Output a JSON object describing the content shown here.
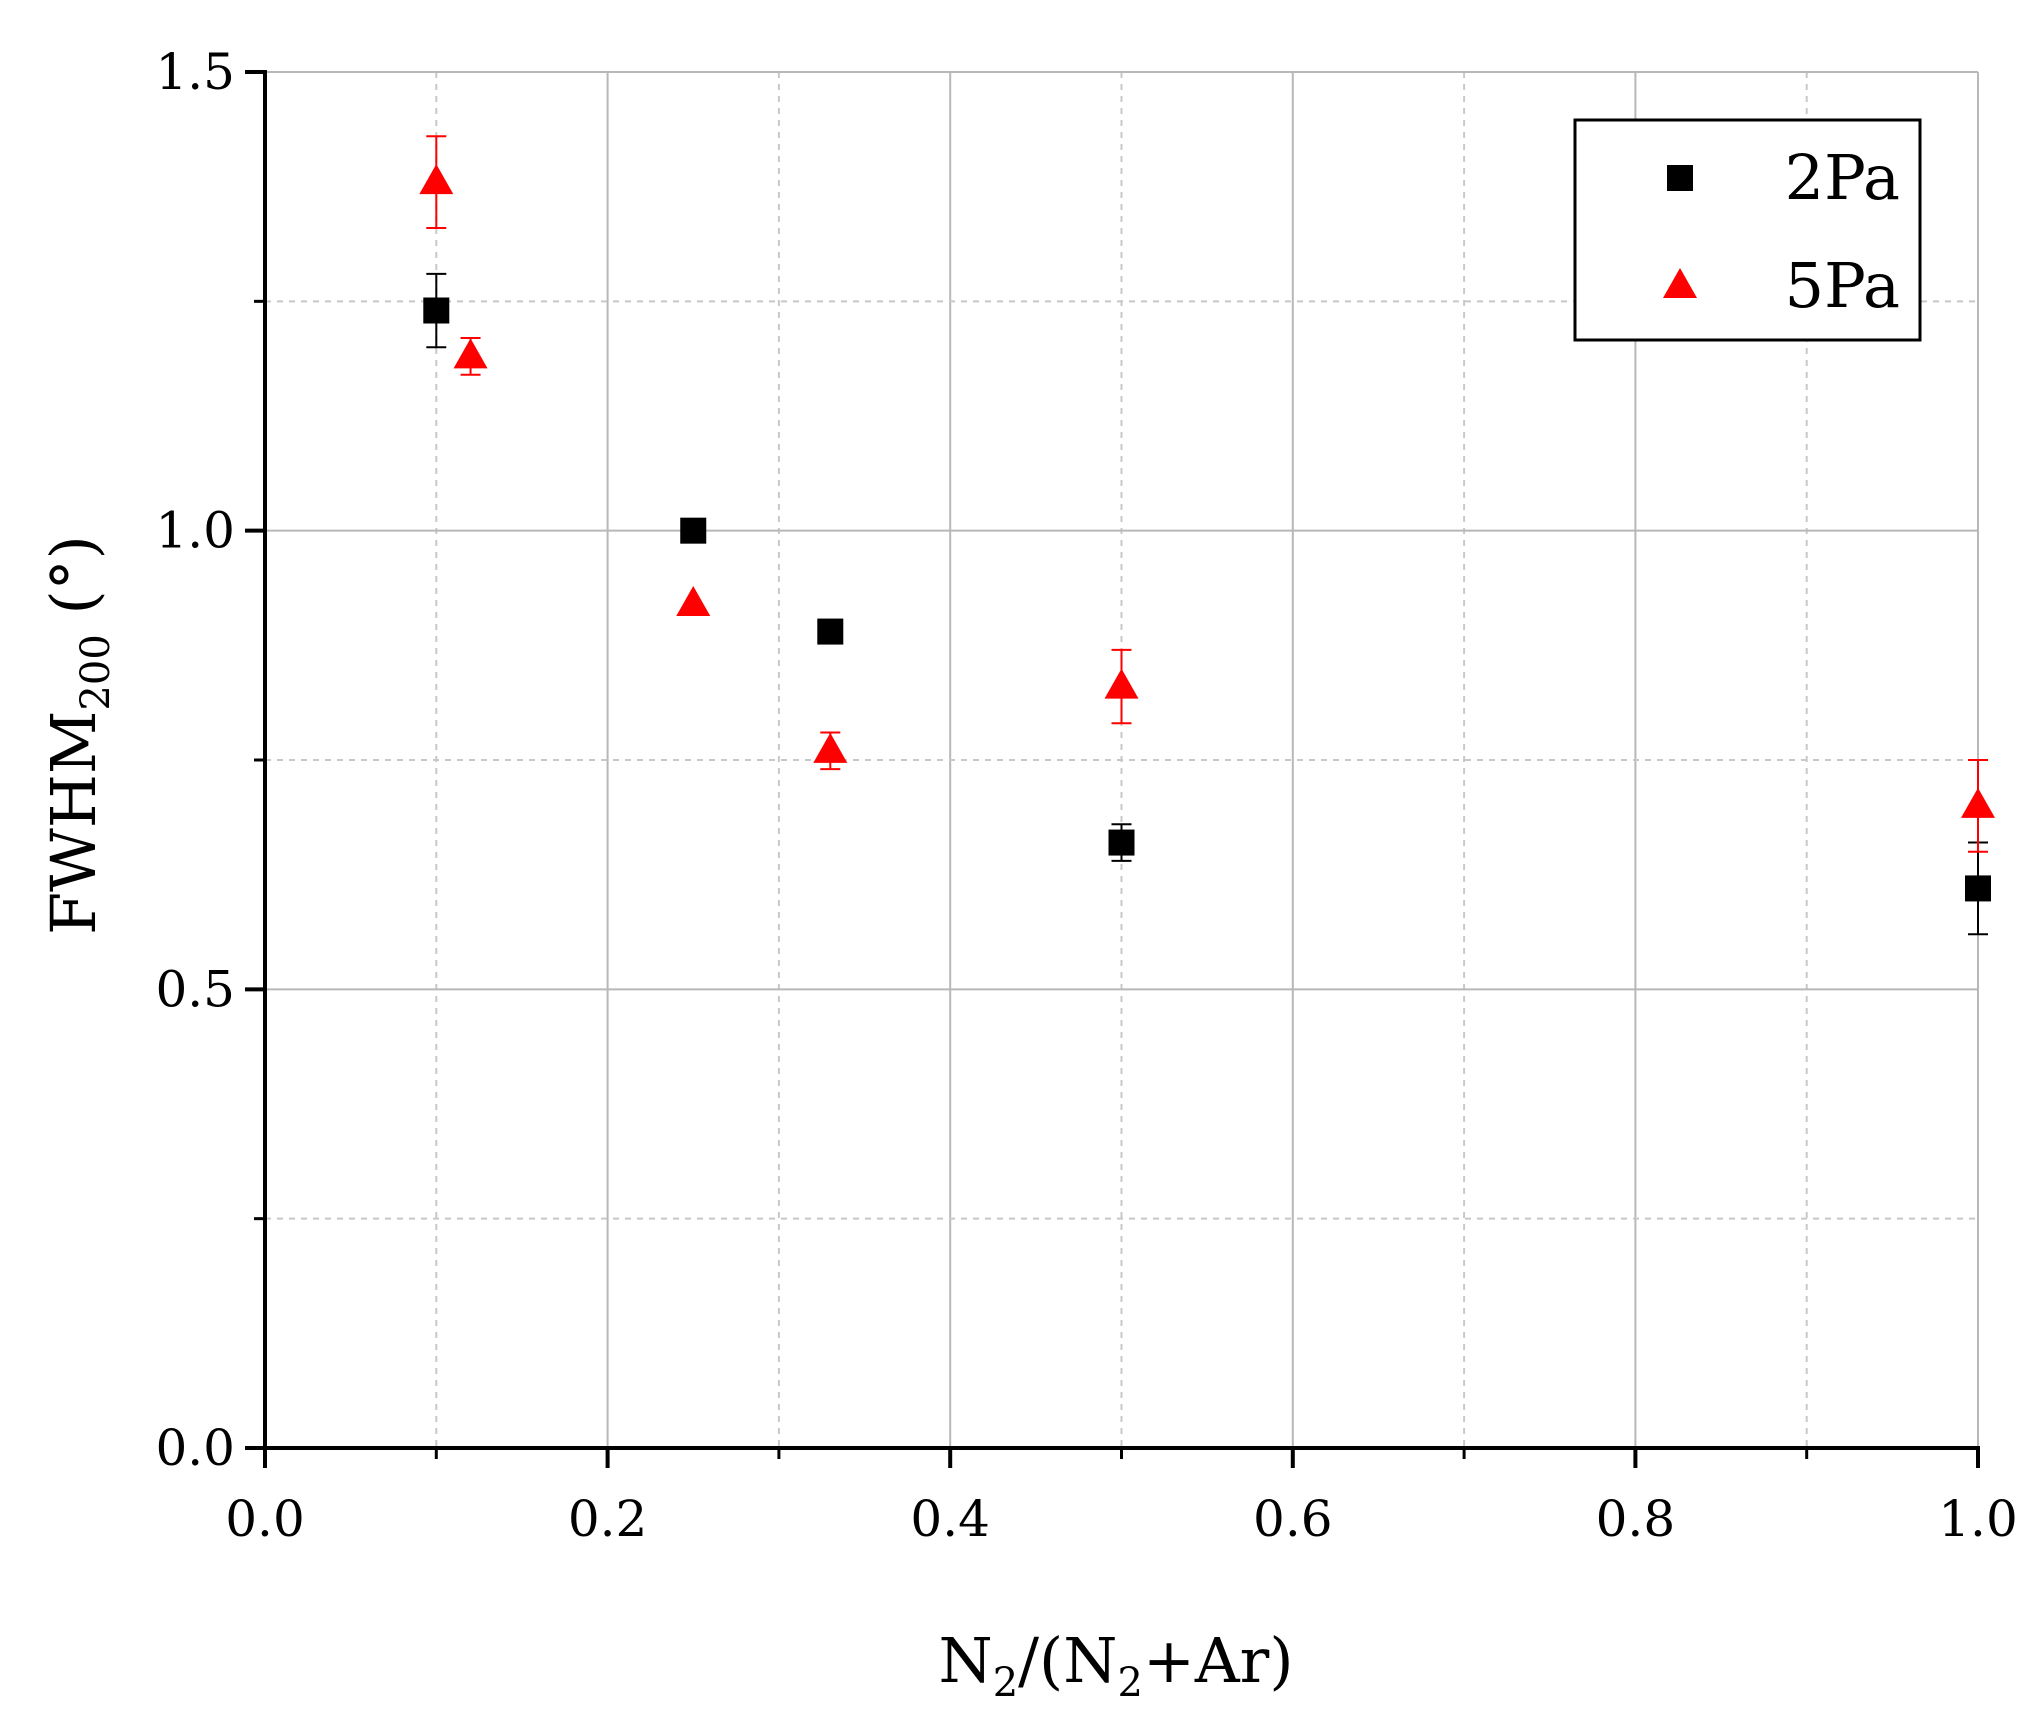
{
  "chart_data": {
    "type": "scatter",
    "xlabel": {
      "base": "N",
      "sub1": "2",
      "mid": "/(N",
      "sub2": "2",
      "tail": "+Ar)"
    },
    "ylabel": {
      "base": "FWHM",
      "sub": "200",
      "tail": " (°)"
    },
    "xlim": [
      0,
      1
    ],
    "ylim": [
      0,
      1.5
    ],
    "x_ticks": [
      0,
      0.2,
      0.4,
      0.6,
      0.8,
      1.0
    ],
    "x_tick_labels": [
      "0.0",
      "0.2",
      "0.4",
      "0.6",
      "0.8",
      "1.0"
    ],
    "x_minor_ticks": [
      0.1,
      0.3,
      0.5,
      0.7,
      0.9
    ],
    "y_ticks": [
      0,
      0.5,
      1.0,
      1.5
    ],
    "y_tick_labels": [
      "0.0",
      "0.5",
      "1.0",
      "1.5"
    ],
    "y_minor_ticks": [
      0.25,
      0.75,
      1.25
    ],
    "grid": true,
    "legend_position": "top-right",
    "series": [
      {
        "name": "2Pa",
        "marker": "square",
        "color": "#000000",
        "points": [
          {
            "x": 0.1,
            "y": 1.24,
            "err": 0.04
          },
          {
            "x": 0.25,
            "y": 1.0,
            "err": 0.0
          },
          {
            "x": 0.33,
            "y": 0.89,
            "err": 0.0
          },
          {
            "x": 0.5,
            "y": 0.66,
            "err": 0.02
          },
          {
            "x": 1.0,
            "y": 0.61,
            "err": 0.05
          }
        ]
      },
      {
        "name": "5Pa",
        "marker": "triangle",
        "color": "#ff0000",
        "points": [
          {
            "x": 0.1,
            "y": 1.38,
            "err": 0.05
          },
          {
            "x": 0.12,
            "y": 1.19,
            "err": 0.02
          },
          {
            "x": 0.25,
            "y": 0.92,
            "err": 0.0
          },
          {
            "x": 0.33,
            "y": 0.76,
            "err": 0.02
          },
          {
            "x": 0.5,
            "y": 0.83,
            "err": 0.04
          },
          {
            "x": 1.0,
            "y": 0.7,
            "err": 0.05
          }
        ]
      }
    ]
  }
}
